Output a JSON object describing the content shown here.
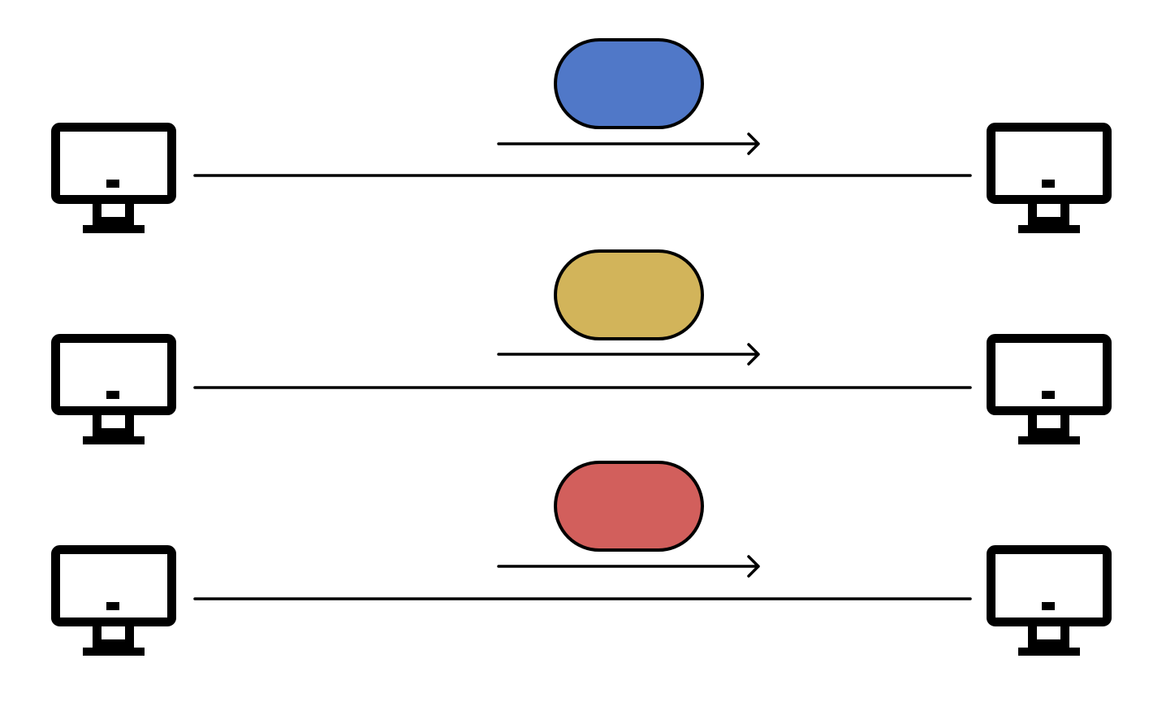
{
  "diagram": {
    "rows": [
      {
        "packet_color": "#5078c8",
        "sender_icon": "computer-monitor",
        "receiver_icon": "computer-monitor"
      },
      {
        "packet_color": "#d2b45a",
        "sender_icon": "computer-monitor",
        "receiver_icon": "computer-monitor"
      },
      {
        "packet_color": "#d25f5c",
        "sender_icon": "computer-monitor",
        "receiver_icon": "computer-monitor"
      }
    ],
    "line_color": "#000000",
    "background": "#ffffff"
  }
}
